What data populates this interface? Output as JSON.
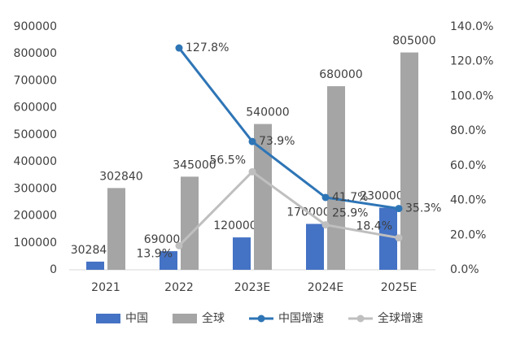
{
  "chart_data": {
    "type": "bar-line",
    "categories": [
      "2021",
      "2022",
      "2023E",
      "2024E",
      "2025E"
    ],
    "series": [
      {
        "name": "中国",
        "type": "bar",
        "color": "#4472c4",
        "values": [
          30284,
          69000,
          120000,
          170000,
          230000
        ]
      },
      {
        "name": "全球",
        "type": "bar",
        "color": "#a5a5a5",
        "values": [
          302840,
          345000,
          540000,
          680000,
          805000
        ]
      },
      {
        "name": "中国增速",
        "type": "line",
        "axis": "y2",
        "color": "#2e75b6",
        "values": [
          null,
          127.8,
          73.9,
          41.7,
          35.3
        ],
        "value_labels": [
          null,
          "127.8%",
          "73.9%",
          "41.7%",
          "35.3%"
        ]
      },
      {
        "name": "全球增速",
        "type": "line",
        "axis": "y2",
        "color": "#bfbfbf",
        "values": [
          null,
          13.9,
          56.5,
          25.9,
          18.4
        ],
        "value_labels": [
          null,
          "13.9%",
          "56.5%",
          "25.9%",
          "18.4%"
        ]
      }
    ],
    "ylim": [
      0,
      900000
    ],
    "yticks": [
      0,
      100000,
      200000,
      300000,
      400000,
      500000,
      600000,
      700000,
      800000,
      900000
    ],
    "y2lim": [
      0,
      140
    ],
    "y2ticks": [
      {
        "value": 0,
        "label": "0.0%"
      },
      {
        "value": 20,
        "label": "20.0%"
      },
      {
        "value": 40,
        "label": "40.0%"
      },
      {
        "value": 60,
        "label": "60.0%"
      },
      {
        "value": 80,
        "label": "80.0%"
      },
      {
        "value": 100,
        "label": "100.0%"
      },
      {
        "value": 120,
        "label": "120.0%"
      },
      {
        "value": 140,
        "label": "140.0%"
      }
    ],
    "legend": "bottom"
  }
}
